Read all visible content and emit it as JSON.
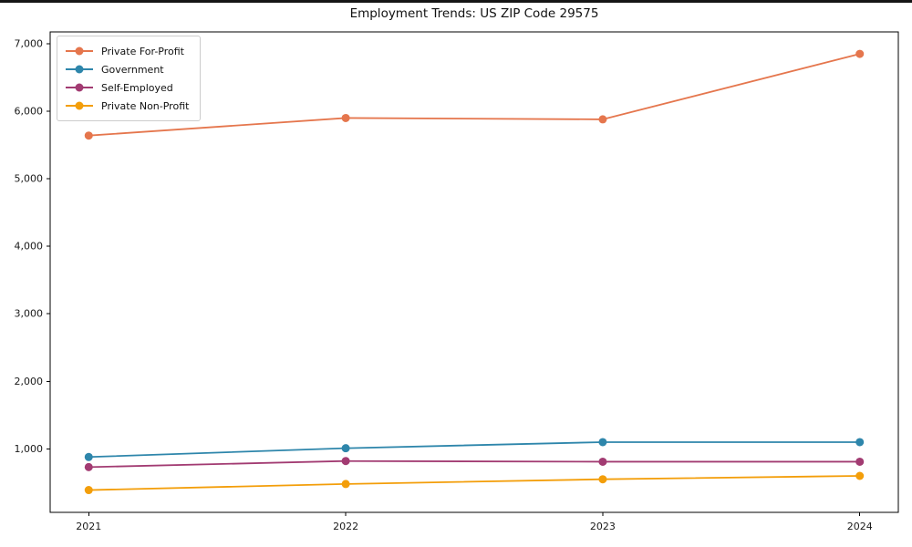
{
  "chart_data": {
    "type": "line",
    "title": "Employment Trends: US ZIP Code 29575",
    "x": [
      2021,
      2022,
      2023,
      2024
    ],
    "x_tick_labels": [
      "2021",
      "2022",
      "2023",
      "2024"
    ],
    "series": [
      {
        "name": "Private For-Profit",
        "color": "#e5764d",
        "values": [
          5640,
          5900,
          5880,
          6850
        ]
      },
      {
        "name": "Government",
        "color": "#2e86ab",
        "values": [
          880,
          1010,
          1100,
          1100
        ]
      },
      {
        "name": "Self-Employed",
        "color": "#a23b72",
        "values": [
          730,
          820,
          810,
          810
        ]
      },
      {
        "name": "Private Non-Profit",
        "color": "#f39e0a",
        "values": [
          390,
          480,
          550,
          600
        ]
      }
    ],
    "xlim": [
      2020.85,
      2024.15
    ],
    "ylim": [
      60,
      7175
    ],
    "yticks": [
      1000,
      2000,
      3000,
      4000,
      5000,
      6000,
      7000
    ],
    "ytick_labels": [
      "1,000",
      "2,000",
      "3,000",
      "4,000",
      "5,000",
      "6,000",
      "7,000"
    ],
    "grid": false,
    "legend_position": "upper-left",
    "axis_color": "#000000",
    "tick_label_color": "#1a1a1a"
  }
}
